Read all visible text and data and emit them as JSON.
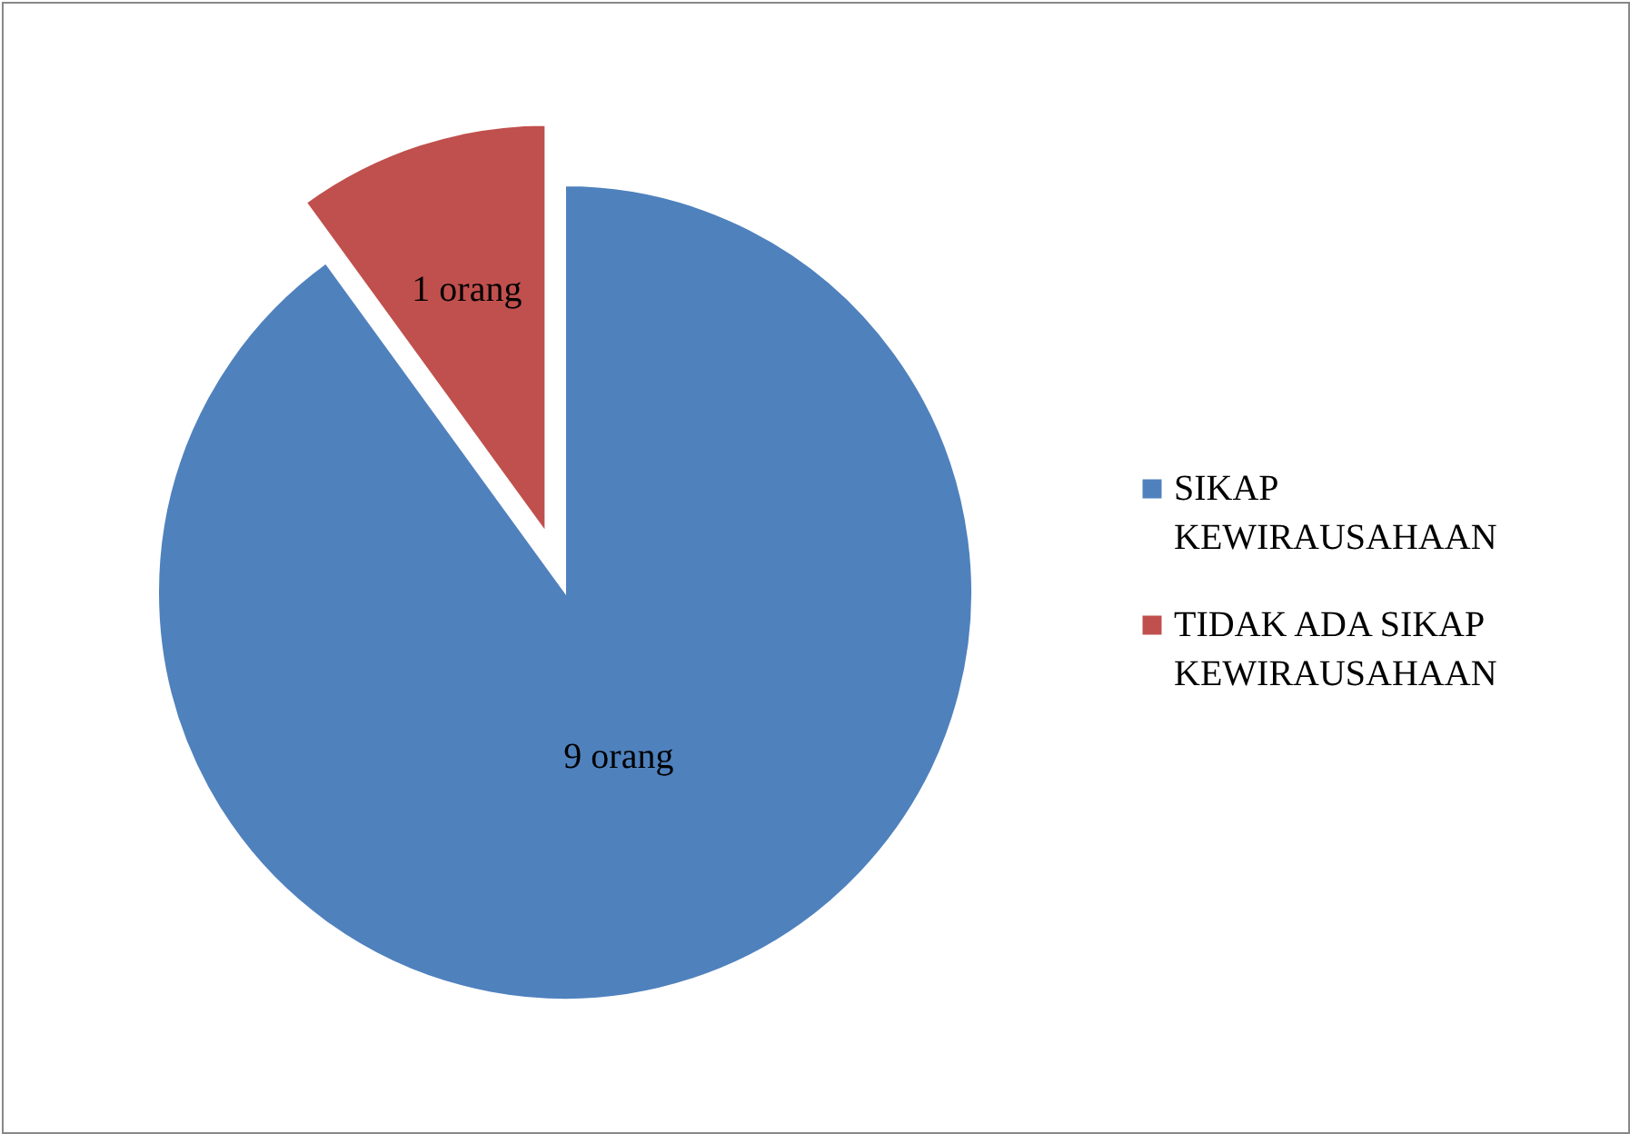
{
  "chart_data": {
    "type": "pie",
    "categories": [
      "SIKAP KEWIRAUSAHAAN",
      "TIDAK ADA SIKAP KEWIRAUSAHAAN"
    ],
    "values": [
      9,
      1
    ],
    "colors": [
      "#4f81bd",
      "#c0504d"
    ],
    "value_labels": [
      "9 orang",
      "1 orang"
    ],
    "legend": "right"
  }
}
